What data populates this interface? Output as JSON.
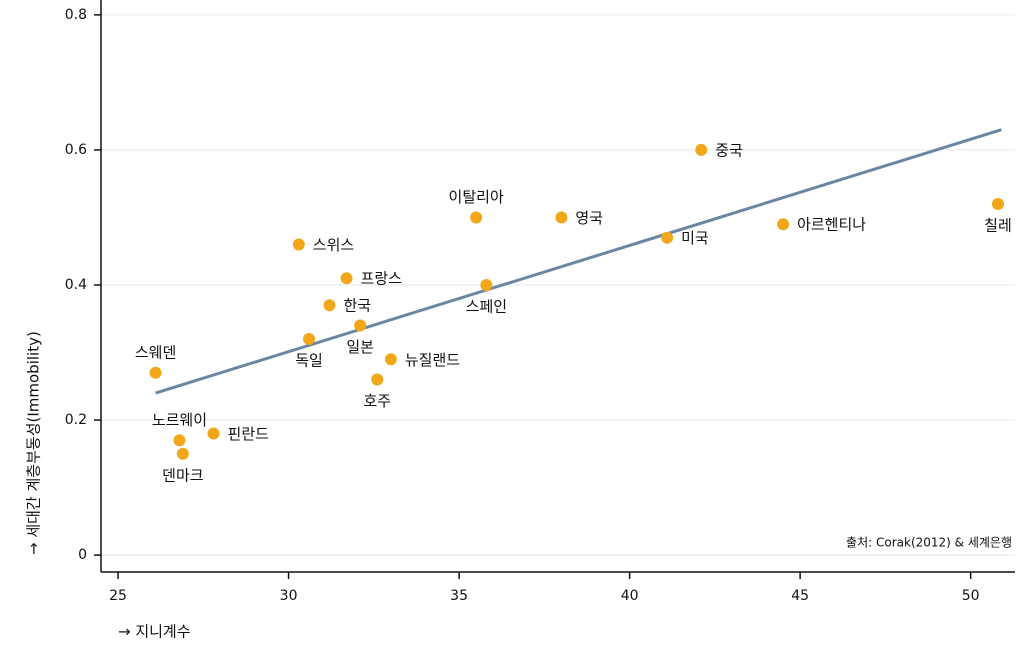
{
  "chart_data": {
    "type": "scatter",
    "x_label": "→ 지니계수",
    "y_label": "→ 세대간 계층부동성(Immobility)",
    "annotation": "출처: Corak(2012) & 세계은행",
    "point_labels": [
      "스웨덴",
      "노르웨이",
      "덴마크",
      "핀란드",
      "스위스",
      "독일",
      "한국",
      "프랑스",
      "일본",
      "호주",
      "뉴질랜드",
      "이탈리아",
      "스페인",
      "영국",
      "미국",
      "중국",
      "아르헨티나",
      "칠레"
    ],
    "x": [
      26.1,
      26.8,
      26.9,
      27.8,
      30.3,
      30.6,
      31.2,
      31.7,
      32.1,
      32.6,
      33.0,
      35.5,
      35.8,
      38.0,
      41.1,
      42.1,
      44.5,
      50.8
    ],
    "values": [
      0.27,
      0.17,
      0.15,
      0.18,
      0.46,
      0.32,
      0.37,
      0.41,
      0.34,
      0.26,
      0.29,
      0.5,
      0.4,
      0.5,
      0.47,
      0.6,
      0.49,
      0.52
    ],
    "color": "#f2a71b",
    "trendline": {
      "x": [
        26.1,
        50.9
      ],
      "values": [
        0.24,
        0.63
      ],
      "color": "#6b86a0"
    },
    "xlim": [
      24.5,
      51.3
    ],
    "xticks": [
      25,
      30,
      35,
      40,
      45,
      50
    ],
    "ylim": [
      -0.025,
      0.822
    ],
    "yticks": [
      0,
      0.2,
      0.4,
      0.6,
      0.8
    ],
    "grid": true
  }
}
